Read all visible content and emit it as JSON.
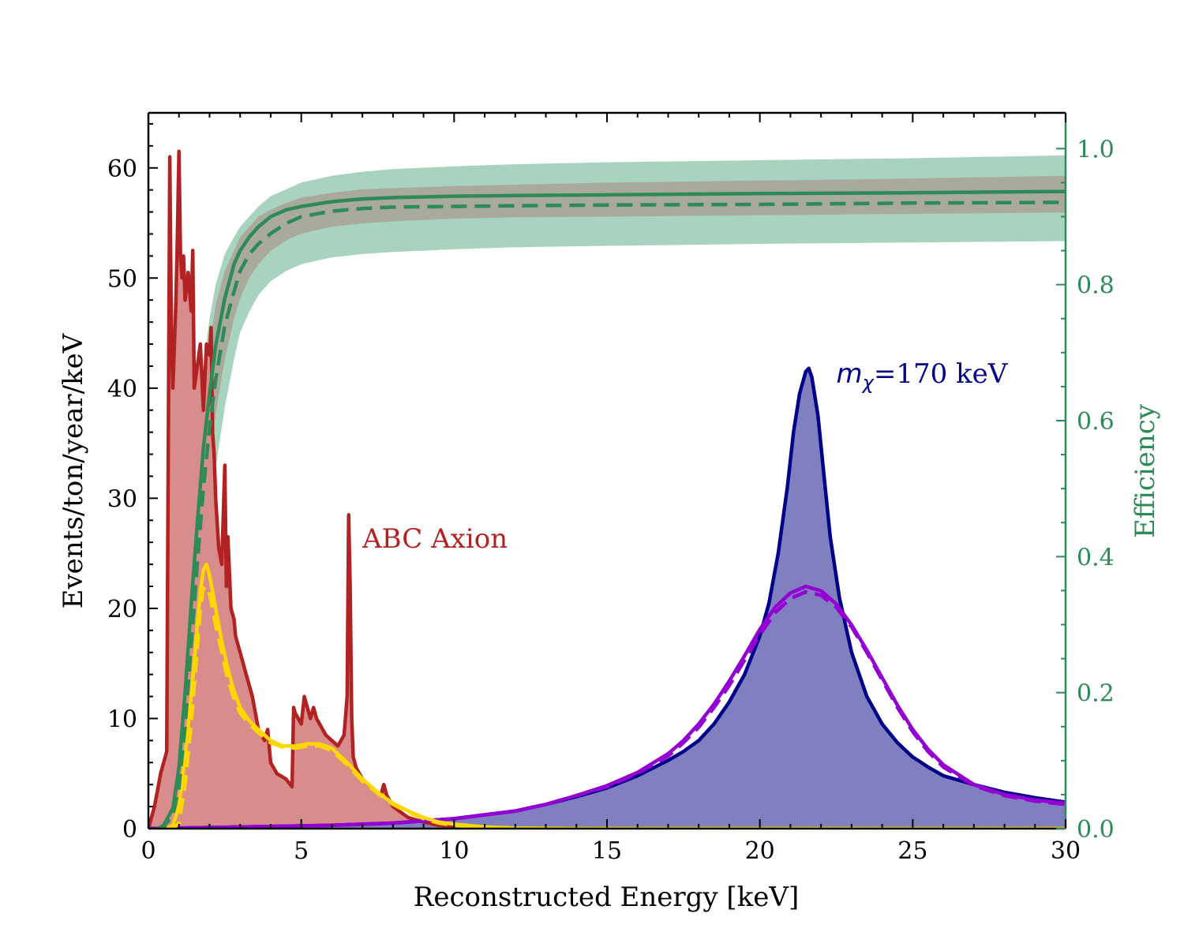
{
  "chart_data": {
    "type": "line",
    "xlabel": "Reconstructed Energy [keV]",
    "ylabel": "Events/ton/year/keV",
    "y2label": "Efficiency",
    "xlim": [
      0,
      30
    ],
    "ylim": [
      0,
      65
    ],
    "y2lim": [
      0,
      1.0526
    ],
    "x_ticks": [
      0,
      5,
      10,
      15,
      20,
      25,
      30
    ],
    "y_ticks": [
      0,
      10,
      20,
      30,
      40,
      50,
      60
    ],
    "y2_ticks": [
      "0.0",
      "0.2",
      "0.4",
      "0.6",
      "0.8",
      "1.0"
    ],
    "y2_tick_values": [
      0,
      0.2,
      0.4,
      0.6,
      0.8,
      1.0
    ],
    "grid": false,
    "colors": {
      "axion": "#b22222",
      "axion_fill": "#d98c8c",
      "axion_smeared": "#ffd700",
      "dm": "#00008b",
      "dm_fill": "#8080c0",
      "dm_smeared": "#9400d3",
      "efficiency": "#2e8b57",
      "efficiency_band": "#a8d3be",
      "efficiency_band_inner": "#aaaa9c"
    },
    "annotations": [
      {
        "text": "ABC Axion",
        "x": 7.0,
        "y": 25.5,
        "color": "#b22222"
      },
      {
        "text_prefix": "m",
        "text_sub": "χ",
        "text_suffix": "=170 keV",
        "x": 22.5,
        "y": 40.5,
        "color": "#00008b"
      }
    ],
    "series": [
      {
        "role": "axion",
        "axis": "left",
        "x": [
          0.0,
          0.2,
          0.4,
          0.6,
          0.7,
          0.75,
          0.8,
          0.9,
          0.95,
          1.0,
          1.05,
          1.1,
          1.15,
          1.2,
          1.3,
          1.4,
          1.45,
          1.5,
          1.6,
          1.7,
          1.8,
          1.9,
          2.0,
          2.05,
          2.1,
          2.15,
          2.2,
          2.3,
          2.4,
          2.5,
          2.55,
          2.6,
          2.7,
          2.8,
          2.85,
          2.9,
          3.0,
          3.2,
          3.4,
          3.6,
          3.8,
          3.9,
          4.0,
          4.2,
          4.5,
          4.7,
          4.75,
          4.8,
          5.0,
          5.1,
          5.2,
          5.3,
          5.4,
          5.5,
          5.6,
          5.8,
          6.0,
          6.2,
          6.4,
          6.5,
          6.55,
          6.6,
          6.65,
          6.7,
          6.8,
          7.0,
          7.2,
          7.4,
          7.6,
          7.7,
          7.8,
          8.0,
          8.5,
          9.0,
          9.5,
          10.0
        ],
        "values": [
          0.0,
          2.0,
          5.0,
          7.0,
          61.0,
          45.0,
          40.0,
          48.0,
          54.0,
          61.5,
          52.0,
          50.0,
          52.0,
          48.0,
          50.5,
          47.0,
          52.5,
          40.0,
          42.0,
          44.0,
          38.0,
          44.0,
          43.0,
          45.5,
          36.0,
          34.0,
          30.0,
          25.5,
          24.0,
          33.0,
          22.0,
          26.5,
          20.0,
          19.0,
          17.5,
          17.0,
          16.0,
          14.0,
          12.0,
          9.0,
          8.0,
          9.0,
          6.0,
          5.0,
          4.5,
          3.8,
          11.0,
          10.5,
          9.5,
          12.0,
          11.0,
          10.0,
          11.0,
          10.0,
          9.5,
          8.5,
          8.0,
          7.5,
          8.5,
          12.0,
          28.5,
          22.0,
          10.0,
          6.5,
          5.5,
          4.5,
          4.0,
          3.5,
          3.0,
          4.0,
          3.0,
          2.0,
          1.0,
          0.6,
          0.3,
          0.1
        ]
      },
      {
        "role": "axion_smeared",
        "axis": "left",
        "style": "solid",
        "x": [
          0.6,
          0.8,
          1.0,
          1.2,
          1.4,
          1.6,
          1.7,
          1.8,
          1.9,
          2.0,
          2.2,
          2.4,
          2.6,
          2.8,
          3.0,
          3.3,
          3.6,
          4.0,
          4.4,
          4.8,
          5.2,
          5.6,
          6.0,
          6.5,
          7.0,
          7.5,
          8.0,
          8.5,
          9.0,
          9.5,
          10.0,
          11.0,
          12.0,
          14.0,
          16.0,
          20.0,
          25.0,
          30.0
        ],
        "values": [
          0.0,
          0.3,
          2.0,
          6.5,
          12.0,
          18.5,
          21.5,
          23.5,
          24.0,
          23.0,
          20.0,
          17.0,
          14.5,
          12.5,
          11.0,
          9.8,
          9.0,
          8.0,
          7.5,
          7.5,
          7.7,
          7.7,
          7.3,
          6.0,
          4.5,
          3.3,
          2.3,
          1.6,
          1.0,
          0.6,
          0.4,
          0.15,
          0.05,
          0.0,
          0.0,
          0.0,
          0.0,
          0.0
        ]
      },
      {
        "role": "axion_smeared",
        "axis": "left",
        "style": "dashed",
        "x": [
          0.6,
          0.8,
          1.0,
          1.2,
          1.4,
          1.6,
          1.7,
          1.8,
          1.9,
          2.0,
          2.2,
          2.4,
          2.6,
          2.8,
          3.0,
          3.3,
          3.6,
          4.0,
          4.4,
          4.8,
          5.2,
          5.6,
          6.0,
          6.5,
          7.0,
          7.5,
          8.0,
          8.5,
          9.0,
          9.5,
          10.0,
          11.0,
          12.0,
          14.0,
          16.0
        ],
        "values": [
          0.0,
          0.0,
          0.5,
          4.0,
          9.5,
          16.5,
          20.0,
          21.8,
          22.0,
          21.3,
          18.5,
          16.0,
          13.5,
          11.8,
          10.5,
          9.5,
          8.7,
          7.8,
          7.4,
          7.3,
          7.5,
          7.5,
          7.1,
          5.8,
          4.3,
          3.2,
          2.2,
          1.5,
          0.9,
          0.5,
          0.3,
          0.1,
          0.0,
          0.0,
          0.0
        ]
      },
      {
        "role": "dm",
        "axis": "left",
        "x": [
          0,
          2,
          4,
          6,
          8,
          10,
          12,
          13,
          14,
          15,
          16,
          17,
          17.5,
          18,
          18.5,
          19,
          19.5,
          20,
          20.3,
          20.6,
          20.9,
          21.1,
          21.3,
          21.5,
          21.6,
          21.7,
          21.9,
          22.1,
          22.3,
          22.6,
          23,
          23.5,
          24,
          24.5,
          25,
          25.5,
          26,
          27,
          28,
          29,
          30
        ],
        "values": [
          0.0,
          0.1,
          0.2,
          0.3,
          0.5,
          0.9,
          1.6,
          2.2,
          2.9,
          3.7,
          4.8,
          6.2,
          7.0,
          8.0,
          9.5,
          11.5,
          14.0,
          17.5,
          20.5,
          25.0,
          31.0,
          36.0,
          39.5,
          41.5,
          41.8,
          41.0,
          37.5,
          32.0,
          26.5,
          21.0,
          16.0,
          12.0,
          9.5,
          7.8,
          6.5,
          5.6,
          4.8,
          4.0,
          3.3,
          2.8,
          2.4
        ]
      },
      {
        "role": "dm_smeared",
        "axis": "left",
        "style": "solid",
        "x": [
          0,
          2,
          4,
          6,
          8,
          10,
          12,
          13,
          14,
          15,
          16,
          17,
          17.5,
          18,
          18.5,
          19,
          19.5,
          20,
          20.5,
          21,
          21.5,
          22,
          22.5,
          23,
          23.5,
          24,
          24.5,
          25,
          25.5,
          26,
          27,
          28,
          29,
          30
        ],
        "values": [
          0.0,
          0.1,
          0.2,
          0.3,
          0.5,
          0.9,
          1.6,
          2.2,
          3.0,
          3.9,
          5.1,
          6.8,
          8.0,
          9.5,
          11.3,
          13.4,
          15.7,
          18.1,
          20.1,
          21.4,
          22.0,
          21.6,
          20.4,
          18.5,
          16.2,
          13.7,
          11.2,
          9.0,
          7.2,
          5.8,
          4.0,
          3.1,
          2.6,
          2.3
        ]
      },
      {
        "role": "dm_smeared",
        "axis": "left",
        "style": "dashed",
        "x": [
          0,
          2,
          4,
          6,
          8,
          10,
          12,
          13,
          14,
          15,
          16,
          17,
          17.5,
          18,
          18.5,
          19,
          19.5,
          20,
          20.5,
          21,
          21.5,
          22,
          22.5,
          23,
          23.5,
          24,
          24.5,
          25,
          25.5,
          26,
          27,
          28,
          29,
          30
        ],
        "values": [
          0.0,
          0.1,
          0.2,
          0.3,
          0.5,
          0.9,
          1.6,
          2.2,
          3.0,
          3.8,
          5.0,
          6.6,
          7.8,
          9.2,
          11.0,
          13.0,
          15.3,
          17.6,
          19.6,
          20.9,
          21.5,
          21.2,
          20.1,
          18.3,
          16.0,
          13.5,
          11.0,
          8.8,
          7.0,
          5.6,
          3.9,
          3.0,
          2.5,
          2.2
        ]
      },
      {
        "role": "efficiency",
        "axis": "right",
        "style": "solid",
        "x": [
          0.3,
          0.5,
          0.8,
          1.0,
          1.2,
          1.4,
          1.6,
          1.8,
          2.0,
          2.2,
          2.5,
          2.8,
          3.0,
          3.3,
          3.6,
          4.0,
          4.5,
          5.0,
          6.0,
          7.0,
          8.0,
          10.0,
          12.0,
          15.0,
          20.0,
          25.0,
          30.0
        ],
        "values": [
          0.0,
          0.005,
          0.03,
          0.09,
          0.2,
          0.33,
          0.45,
          0.56,
          0.64,
          0.71,
          0.78,
          0.83,
          0.85,
          0.87,
          0.885,
          0.9,
          0.91,
          0.915,
          0.922,
          0.926,
          0.928,
          0.93,
          0.931,
          0.932,
          0.934,
          0.935,
          0.937
        ]
      },
      {
        "role": "efficiency",
        "axis": "right",
        "style": "dashed",
        "x": [
          0.3,
          0.5,
          0.8,
          1.0,
          1.2,
          1.4,
          1.6,
          1.8,
          2.0,
          2.2,
          2.5,
          2.8,
          3.0,
          3.3,
          3.6,
          4.0,
          4.5,
          5.0,
          6.0,
          7.0,
          8.0,
          10.0,
          12.0,
          15.0,
          20.0,
          25.0,
          30.0
        ],
        "values": [
          0.0,
          0.003,
          0.02,
          0.06,
          0.15,
          0.27,
          0.39,
          0.5,
          0.59,
          0.66,
          0.74,
          0.79,
          0.82,
          0.845,
          0.86,
          0.875,
          0.89,
          0.9,
          0.908,
          0.912,
          0.914,
          0.915,
          0.916,
          0.917,
          0.918,
          0.92,
          0.921
        ]
      }
    ],
    "efficiency_band": {
      "x": [
        0.3,
        0.5,
        0.8,
        1.0,
        1.2,
        1.4,
        1.6,
        1.8,
        2.0,
        2.2,
        2.5,
        2.8,
        3.0,
        3.3,
        3.6,
        4.0,
        4.5,
        5.0,
        6.0,
        7.0,
        8.0,
        10.0,
        12.0,
        15.0,
        20.0,
        25.0,
        30.0
      ],
      "upper": [
        0.01,
        0.03,
        0.08,
        0.17,
        0.3,
        0.44,
        0.57,
        0.68,
        0.75,
        0.8,
        0.845,
        0.87,
        0.885,
        0.9,
        0.915,
        0.93,
        0.94,
        0.95,
        0.96,
        0.966,
        0.97,
        0.974,
        0.977,
        0.98,
        0.983,
        0.986,
        0.99
      ],
      "lower": [
        0.0,
        0.0,
        0.0,
        0.02,
        0.07,
        0.15,
        0.25,
        0.35,
        0.45,
        0.53,
        0.62,
        0.69,
        0.73,
        0.76,
        0.785,
        0.805,
        0.82,
        0.83,
        0.84,
        0.845,
        0.848,
        0.852,
        0.855,
        0.857,
        0.86,
        0.862,
        0.864
      ]
    },
    "efficiency_band_inner": {
      "x": [
        0.3,
        0.5,
        0.8,
        1.0,
        1.2,
        1.4,
        1.6,
        1.8,
        2.0,
        2.2,
        2.5,
        2.8,
        3.0,
        3.3,
        3.6,
        4.0,
        4.5,
        5.0,
        6.0,
        7.0,
        8.0,
        10.0,
        12.0,
        15.0,
        20.0,
        25.0,
        30.0
      ],
      "upper": [
        0.005,
        0.02,
        0.06,
        0.13,
        0.25,
        0.39,
        0.52,
        0.63,
        0.71,
        0.77,
        0.82,
        0.85,
        0.87,
        0.885,
        0.9,
        0.91,
        0.92,
        0.928,
        0.935,
        0.94,
        0.942,
        0.945,
        0.947,
        0.95,
        0.953,
        0.956,
        0.96
      ],
      "lower": [
        0.0,
        0.0,
        0.01,
        0.04,
        0.12,
        0.22,
        0.33,
        0.44,
        0.53,
        0.61,
        0.69,
        0.75,
        0.78,
        0.81,
        0.83,
        0.85,
        0.865,
        0.875,
        0.885,
        0.89,
        0.893,
        0.897,
        0.899,
        0.9,
        0.902,
        0.904,
        0.906
      ]
    }
  }
}
